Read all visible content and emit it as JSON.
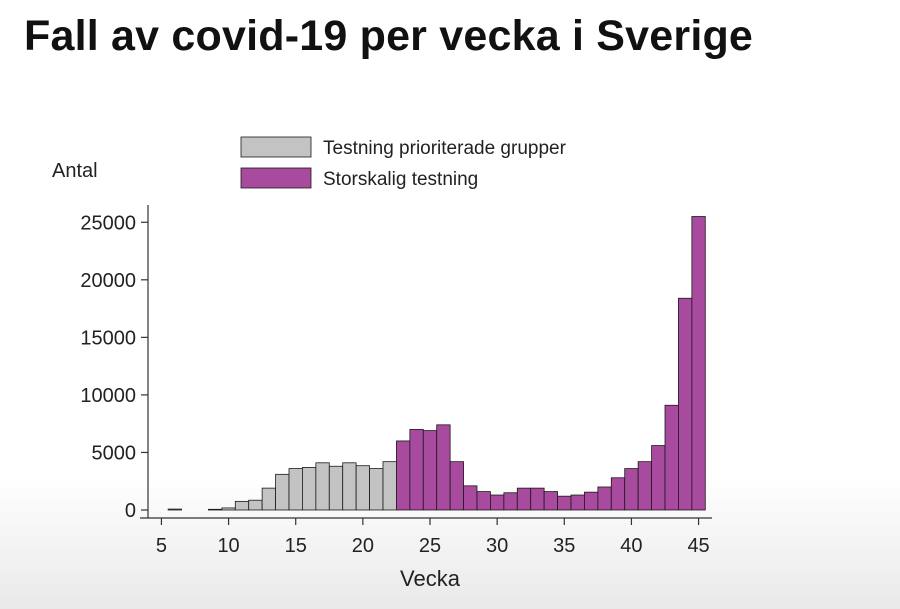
{
  "title": "Fall av covid-19 per vecka i Sverige",
  "chart_data": {
    "type": "bar",
    "title": "",
    "xlabel": "Vecka",
    "ylabel": "Antal",
    "xlim": [
      4,
      46
    ],
    "ylim": [
      0,
      26500
    ],
    "xticks": [
      5,
      10,
      15,
      20,
      25,
      30,
      35,
      40,
      45
    ],
    "yticks": [
      0,
      5000,
      10000,
      15000,
      20000,
      25000
    ],
    "legend": "top",
    "colors": {
      "gray": "#c3c3c3",
      "purple": "#a84a9d"
    },
    "series": [
      {
        "name": "Testning prioriterade grupper",
        "x": [
          6,
          9,
          10,
          11,
          12,
          13,
          14,
          15,
          16,
          17,
          18,
          19,
          20,
          21,
          22
        ],
        "values": [
          80,
          60,
          180,
          750,
          850,
          1900,
          3100,
          3600,
          3700,
          4100,
          3800,
          4100,
          3850,
          3600,
          4200
        ]
      },
      {
        "name": "Storskalig testning",
        "x": [
          23,
          24,
          25,
          26,
          27,
          28,
          29,
          30,
          31,
          32,
          33,
          34,
          35,
          36,
          37,
          38,
          39,
          40,
          41,
          42,
          43,
          44,
          45
        ],
        "values": [
          6000,
          7000,
          6900,
          7400,
          4200,
          2100,
          1600,
          1300,
          1500,
          1900,
          1900,
          1600,
          1200,
          1300,
          1550,
          2000,
          2800,
          3600,
          4200,
          5600,
          9100,
          18400,
          25500
        ]
      }
    ]
  }
}
